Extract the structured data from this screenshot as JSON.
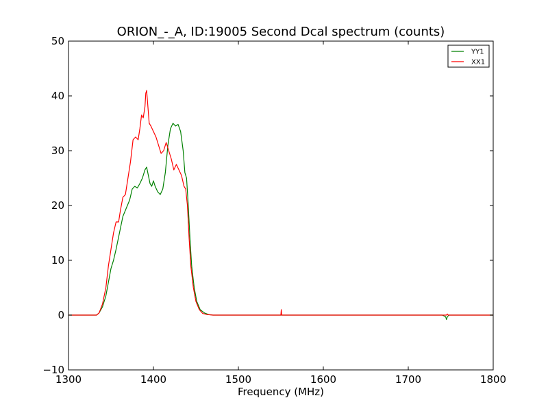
{
  "chart_data": {
    "type": "line",
    "title": "ORION_-_A, ID:19005 Second Dcal spectrum (counts)",
    "xlabel": "Frequency (MHz)",
    "ylabel": "",
    "xlim": [
      1300,
      1800
    ],
    "ylim": [
      -10,
      50
    ],
    "xticks": [
      1300,
      1400,
      1500,
      1600,
      1700,
      1800
    ],
    "yticks": [
      -10,
      0,
      10,
      20,
      30,
      40,
      50
    ],
    "grid": false,
    "legend": {
      "placement": "top-right",
      "entries": [
        "YY1",
        "XX1"
      ]
    },
    "series": [
      {
        "name": "YY1",
        "color": "#008000",
        "points": [
          [
            1300,
            0
          ],
          [
            1320,
            0
          ],
          [
            1333,
            0
          ],
          [
            1336,
            0.4
          ],
          [
            1340,
            1.5
          ],
          [
            1344,
            3.5
          ],
          [
            1347,
            6
          ],
          [
            1350,
            8.5
          ],
          [
            1353,
            10
          ],
          [
            1356,
            12
          ],
          [
            1360,
            15
          ],
          [
            1364,
            18
          ],
          [
            1368,
            19.5
          ],
          [
            1372,
            21
          ],
          [
            1375,
            23
          ],
          [
            1378,
            23.5
          ],
          [
            1381,
            23.2
          ],
          [
            1384,
            24
          ],
          [
            1387,
            25
          ],
          [
            1390,
            26.5
          ],
          [
            1392,
            27
          ],
          [
            1394,
            25.5
          ],
          [
            1396,
            24
          ],
          [
            1398,
            23.5
          ],
          [
            1400,
            24.5
          ],
          [
            1402,
            23.5
          ],
          [
            1405,
            22.5
          ],
          [
            1408,
            22
          ],
          [
            1411,
            23
          ],
          [
            1414,
            26
          ],
          [
            1417,
            31
          ],
          [
            1420,
            34
          ],
          [
            1423,
            35
          ],
          [
            1426,
            34.5
          ],
          [
            1429,
            34.8
          ],
          [
            1432,
            33.5
          ],
          [
            1435,
            30
          ],
          [
            1437,
            26
          ],
          [
            1439,
            25
          ],
          [
            1441,
            20
          ],
          [
            1443,
            14
          ],
          [
            1445,
            9
          ],
          [
            1448,
            5
          ],
          [
            1451,
            2.5
          ],
          [
            1455,
            1
          ],
          [
            1460,
            0.4
          ],
          [
            1465,
            0.1
          ],
          [
            1470,
            0
          ],
          [
            1550,
            0
          ],
          [
            1740,
            0
          ],
          [
            1744,
            -0.3
          ],
          [
            1745,
            -0.8
          ],
          [
            1746,
            -0.3
          ],
          [
            1748,
            0
          ],
          [
            1800,
            0
          ]
        ]
      },
      {
        "name": "XX1",
        "color": "#ff0000",
        "points": [
          [
            1300,
            0
          ],
          [
            1320,
            0
          ],
          [
            1333,
            0
          ],
          [
            1336,
            0.4
          ],
          [
            1340,
            2
          ],
          [
            1344,
            5
          ],
          [
            1347,
            9
          ],
          [
            1350,
            12
          ],
          [
            1353,
            15
          ],
          [
            1356,
            17
          ],
          [
            1359,
            17
          ],
          [
            1361,
            19
          ],
          [
            1364,
            21.5
          ],
          [
            1367,
            22
          ],
          [
            1370,
            25
          ],
          [
            1373,
            28
          ],
          [
            1376,
            32
          ],
          [
            1379,
            32.5
          ],
          [
            1382,
            32
          ],
          [
            1384,
            34
          ],
          [
            1386,
            36.5
          ],
          [
            1388,
            36
          ],
          [
            1390,
            38
          ],
          [
            1391,
            40.5
          ],
          [
            1392,
            41
          ],
          [
            1393,
            39
          ],
          [
            1395,
            35
          ],
          [
            1397,
            34.5
          ],
          [
            1400,
            33.5
          ],
          [
            1403,
            32.5
          ],
          [
            1406,
            31
          ],
          [
            1409,
            29.5
          ],
          [
            1412,
            30
          ],
          [
            1415,
            31.5
          ],
          [
            1418,
            30
          ],
          [
            1421,
            28.5
          ],
          [
            1424,
            26.5
          ],
          [
            1427,
            27.5
          ],
          [
            1430,
            26.5
          ],
          [
            1433,
            25.5
          ],
          [
            1436,
            23.5
          ],
          [
            1438,
            23
          ],
          [
            1440,
            20
          ],
          [
            1442,
            14
          ],
          [
            1444,
            9
          ],
          [
            1447,
            5
          ],
          [
            1450,
            2.5
          ],
          [
            1454,
            1
          ],
          [
            1458,
            0.3
          ],
          [
            1463,
            0.1
          ],
          [
            1470,
            0
          ],
          [
            1549,
            0
          ],
          [
            1550,
            0
          ],
          [
            1550.5,
            1
          ],
          [
            1551,
            0
          ],
          [
            1745,
            0
          ],
          [
            1746,
            0.2
          ],
          [
            1747,
            0
          ],
          [
            1800,
            0
          ]
        ]
      }
    ]
  }
}
